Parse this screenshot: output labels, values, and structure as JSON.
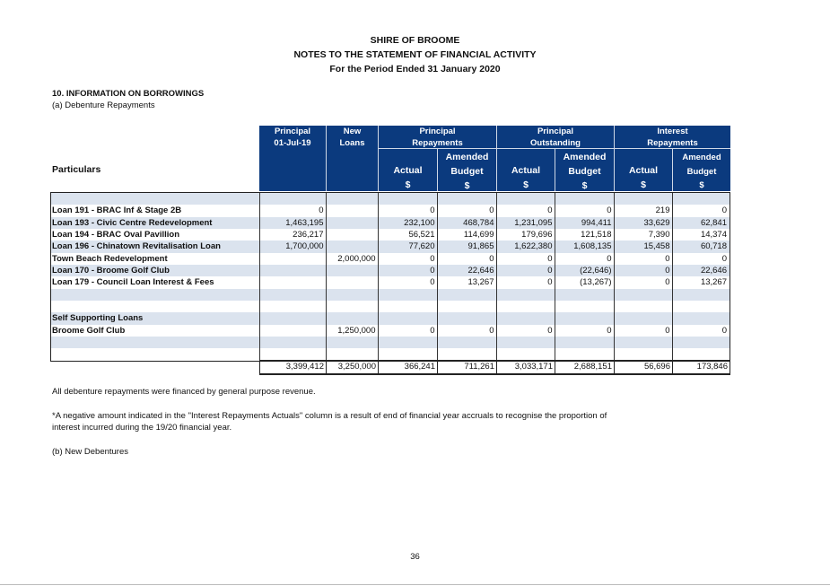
{
  "header": {
    "org": "SHIRE OF BROOME",
    "report": "NOTES TO THE STATEMENT OF FINANCIAL ACTIVITY",
    "period": "For the Period Ended 31 January 2020"
  },
  "section": {
    "title": "10. INFORMATION ON BORROWINGS",
    "subtitle": "(a) Debenture Repayments"
  },
  "table": {
    "col_particulars": "Particulars",
    "col_principal": [
      "Principal",
      "01-Jul-19"
    ],
    "col_new_loans": [
      "New",
      "Loans"
    ],
    "group_principal_repayments": [
      "Principal",
      "Repayments"
    ],
    "group_principal_outstanding": [
      "Principal",
      "Outstanding"
    ],
    "group_interest_repayments": [
      "Interest",
      "Repayments"
    ],
    "sub_actual": "Actual",
    "sub_amended": "Amended",
    "sub_budget": "Budget",
    "sub_currency": "$",
    "rows": [
      {
        "name": "",
        "values": [
          "",
          "",
          "",
          "",
          "",
          "",
          "",
          ""
        ]
      },
      {
        "name": "Loan 191 - BRAC Inf & Stage 2B",
        "values": [
          "0",
          "",
          "0",
          "0",
          "0",
          "0",
          "219",
          "0"
        ]
      },
      {
        "name": "Loan 193 - Civic Centre Redevelopment",
        "values": [
          "1,463,195",
          "",
          "232,100",
          "468,784",
          "1,231,095",
          "994,411",
          "33,629",
          "62,841"
        ]
      },
      {
        "name": "Loan 194 - BRAC Oval Pavillion",
        "values": [
          "236,217",
          "",
          "56,521",
          "114,699",
          "179,696",
          "121,518",
          "7,390",
          "14,374"
        ]
      },
      {
        "name": "Loan 196 - Chinatown Revitalisation Loan",
        "values": [
          "1,700,000",
          "",
          "77,620",
          "91,865",
          "1,622,380",
          "1,608,135",
          "15,458",
          "60,718"
        ]
      },
      {
        "name": "Town Beach Redevelopment",
        "values": [
          "",
          "2,000,000",
          "0",
          "0",
          "0",
          "0",
          "0",
          "0"
        ]
      },
      {
        "name": "Loan 170 - Broome Golf Club",
        "values": [
          "",
          "",
          "0",
          "22,646",
          "0",
          "(22,646)",
          "0",
          "22,646"
        ]
      },
      {
        "name": "Loan 179 - Council Loan Interest & Fees",
        "values": [
          "",
          "",
          "0",
          "13,267",
          "0",
          "(13,267)",
          "0",
          "13,267"
        ]
      },
      {
        "name": "",
        "values": [
          "",
          "",
          "",
          "",
          "",
          "",
          "",
          ""
        ]
      },
      {
        "name": "",
        "values": [
          "",
          "",
          "",
          "",
          "",
          "",
          "",
          ""
        ]
      },
      {
        "name": "Self Supporting Loans",
        "values": [
          "",
          "",
          "",
          "",
          "",
          "",
          "",
          ""
        ]
      },
      {
        "name": "Broome Golf Club",
        "values": [
          "",
          "1,250,000",
          "0",
          "0",
          "0",
          "0",
          "0",
          "0"
        ]
      },
      {
        "name": "",
        "values": [
          "",
          "",
          "",
          "",
          "",
          "",
          "",
          ""
        ]
      },
      {
        "name": "",
        "values": [
          "",
          "",
          "",
          "",
          "",
          "",
          "",
          ""
        ]
      }
    ],
    "totals": [
      "3,399,412",
      "3,250,000",
      "366,241",
      "711,261",
      "3,033,171",
      "2,688,151",
      "56,696",
      "173,846"
    ]
  },
  "notes": {
    "financed": "All debenture repayments were financed by general purpose revenue.",
    "negative_line1": "*A negative amount indicated in the \"Interest Repayments Actuals\" column is a result of end of financial year accruals to recognise the proportion of",
    "negative_line2": "interest incurred during the 19/20 financial year.",
    "new_debentures": "(b) New Debentures"
  },
  "page_number": "36"
}
